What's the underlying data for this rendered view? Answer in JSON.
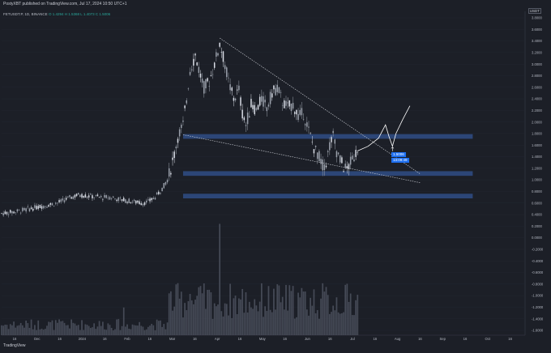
{
  "header": {
    "published": "PostyXBT published on TradingView.com, Jul 17, 2024 10:50 UTC+1",
    "symbol": "FETUSDT.P, 1D, BINANCE",
    "ohlc": "O 1.4294  H 1.5368  L 1.4073  C 1.5006",
    "unit": "USDT"
  },
  "price_badges": {
    "last": "1.5006",
    "countdown": "13:09:49"
  },
  "footer": {
    "brand": "TradingView"
  },
  "colors": {
    "background": "#1c1f27",
    "up": "#d9dde6",
    "down": "#9aa0ab",
    "zone": "#2f4d86",
    "volume": "#4a4f5c",
    "accent": "#1e6ff0"
  },
  "chart_data": {
    "type": "candlestick",
    "y_axis_ticks": [
      "3.8000",
      "3.6000",
      "3.4000",
      "3.2000",
      "3.0000",
      "2.8000",
      "2.6000",
      "2.4000",
      "2.2000",
      "2.0000",
      "1.8000",
      "1.6000",
      "1.4000",
      "1.2000",
      "1.0000",
      "0.8000",
      "0.6000",
      "0.4000",
      "0.2000",
      "0.0000",
      "-0.2000",
      "-0.4000",
      "-0.6000",
      "-0.8000",
      "-1.0000",
      "-1.2000",
      "-1.4000",
      "-1.6000"
    ],
    "x_axis_ticks": [
      "16",
      "Dec",
      "16",
      "2024",
      "16",
      "Feb",
      "16",
      "Mar",
      "16",
      "Apr",
      "16",
      "May",
      "16",
      "Jun",
      "16",
      "Jul",
      "16",
      "Aug",
      "16",
      "Sep",
      "16",
      "Oct",
      "16"
    ],
    "price_path": [
      [
        0,
        0.42
      ],
      [
        8,
        0.45
      ],
      [
        16,
        0.5
      ],
      [
        24,
        0.55
      ],
      [
        32,
        0.6
      ],
      [
        38,
        0.68
      ],
      [
        44,
        0.74
      ],
      [
        50,
        0.72
      ],
      [
        56,
        0.7
      ],
      [
        62,
        0.7
      ],
      [
        68,
        0.66
      ],
      [
        74,
        0.63
      ],
      [
        80,
        0.6
      ],
      [
        84,
        0.62
      ],
      [
        88,
        0.7
      ],
      [
        92,
        0.85
      ],
      [
        95,
        1.0
      ],
      [
        97,
        1.2
      ],
      [
        99,
        1.45
      ],
      [
        101,
        1.75
      ],
      [
        104,
        1.95
      ],
      [
        106,
        2.4
      ],
      [
        108,
        2.9
      ],
      [
        111,
        3.15
      ],
      [
        114,
        2.8
      ],
      [
        116,
        2.6
      ],
      [
        119,
        2.7
      ],
      [
        122,
        3.0
      ],
      [
        125,
        3.35
      ],
      [
        128,
        3.0
      ],
      [
        130,
        2.7
      ],
      [
        133,
        2.4
      ],
      [
        136,
        2.55
      ],
      [
        138,
        2.15
      ],
      [
        140,
        1.95
      ],
      [
        143,
        2.3
      ],
      [
        146,
        2.2
      ],
      [
        149,
        2.4
      ],
      [
        152,
        2.25
      ],
      [
        155,
        2.5
      ],
      [
        158,
        2.6
      ],
      [
        161,
        2.35
      ],
      [
        164,
        2.25
      ],
      [
        167,
        2.3
      ],
      [
        170,
        2.1
      ],
      [
        173,
        2.15
      ],
      [
        176,
        1.85
      ],
      [
        179,
        1.55
      ],
      [
        182,
        1.4
      ],
      [
        184,
        1.25
      ],
      [
        186,
        1.3
      ],
      [
        188,
        1.6
      ],
      [
        190,
        1.75
      ],
      [
        192,
        1.5
      ],
      [
        194,
        1.35
      ],
      [
        196,
        1.22
      ],
      [
        198,
        1.18
      ],
      [
        200,
        1.3
      ],
      [
        202,
        1.42
      ],
      [
        204,
        1.5
      ]
    ],
    "zones": [
      {
        "low": 1.71,
        "high": 1.79
      },
      {
        "low": 1.07,
        "high": 1.15
      },
      {
        "low": 0.68,
        "high": 0.76
      }
    ],
    "trendlines": [
      {
        "from": [
          125,
          3.45
        ],
        "to": [
          240,
          1.1
        ]
      },
      {
        "from": [
          104,
          1.78
        ],
        "to": [
          240,
          0.95
        ]
      }
    ],
    "projection": [
      [
        204,
        1.5
      ],
      [
        210,
        1.58
      ],
      [
        216,
        1.72
      ],
      [
        220,
        1.95
      ],
      [
        222,
        1.75
      ],
      [
        224,
        1.58
      ],
      [
        226,
        1.8
      ],
      [
        230,
        2.05
      ],
      [
        234,
        2.28
      ]
    ],
    "volume_max": 1,
    "grid": true,
    "legend": "none"
  }
}
